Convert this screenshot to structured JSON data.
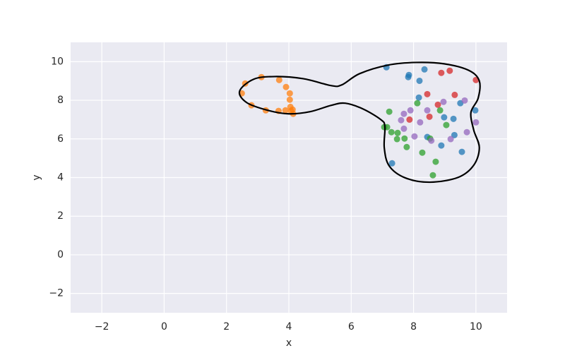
{
  "chart_data": {
    "type": "scatter",
    "x_label": "x",
    "y_label": "y",
    "xlim": [
      -3,
      11
    ],
    "ylim": [
      -3,
      11
    ],
    "xticks": [
      {
        "value": -2,
        "label": "−2"
      },
      0,
      2,
      4,
      6,
      8,
      10
    ],
    "yticks": [
      {
        "value": -2,
        "label": "−2"
      },
      0,
      2,
      4,
      6,
      8,
      10
    ],
    "grid": true,
    "background": "#eaeaf2",
    "grid_color": "#ffffff",
    "series": [
      {
        "color": "#ff7f0e",
        "x": [
          2.6,
          3.12,
          2.49,
          2.8,
          3.26,
          3.69,
          3.91,
          4.03,
          4.03,
          4.05,
          4.07,
          4.14,
          3.89,
          3.67,
          4.12
        ],
        "y": [
          8.87,
          9.2,
          8.36,
          7.74,
          7.48,
          9.05,
          8.69,
          8.36,
          8.03,
          7.66,
          7.45,
          7.3,
          7.48,
          7.45,
          7.52
        ]
      },
      {
        "color": "#1f77b4",
        "x": [
          7.13,
          7.85,
          7.83,
          8.35,
          8.19,
          8.17,
          9.5,
          9.98,
          9.28,
          8.98,
          8.44,
          9.31,
          8.89,
          9.55,
          7.31
        ],
        "y": [
          9.71,
          9.31,
          9.2,
          9.6,
          9.01,
          8.14,
          7.85,
          7.48,
          7.04,
          7.12,
          6.1,
          6.2,
          5.66,
          5.33,
          4.74
        ]
      },
      {
        "color": "#d62728",
        "x": [
          8.89,
          9.16,
          10.0,
          8.44,
          9.32,
          8.78,
          8.51,
          7.87
        ],
        "y": [
          9.42,
          9.53,
          9.05,
          8.32,
          8.28,
          7.77,
          7.15,
          7.0
        ]
      },
      {
        "color": "#2ca02c",
        "x": [
          7.22,
          8.12,
          8.85,
          7.06,
          7.15,
          7.29,
          7.49,
          7.47,
          7.71,
          7.78,
          8.53,
          9.05,
          8.28,
          8.71,
          8.62
        ],
        "y": [
          7.41,
          7.85,
          7.48,
          6.61,
          6.61,
          6.35,
          6.31,
          5.99,
          6.02,
          5.58,
          6.02,
          6.72,
          5.29,
          4.82,
          4.12
        ]
      },
      {
        "color": "#9467bd",
        "x": [
          7.9,
          7.69,
          7.6,
          7.69,
          8.03,
          8.44,
          8.96,
          9.64,
          10.0,
          9.71,
          9.19,
          8.57,
          8.21
        ],
        "y": [
          7.48,
          7.3,
          6.97,
          6.53,
          6.13,
          7.48,
          7.92,
          7.99,
          6.86,
          6.35,
          5.99,
          5.91,
          6.86
        ]
      }
    ],
    "curve": {
      "color": "#000000",
      "x": [
        2.42,
        2.87,
        3.55,
        4.46,
        5.36,
        5.7,
        6.27,
        7.17,
        8.08,
        8.98,
        9.77,
        10.11,
        10.07,
        9.84,
        9.93,
        10.11,
        9.93,
        9.43,
        8.53,
        7.74,
        7.22,
        7.06,
        7.08,
        6.95,
        6.38,
        5.81,
        5.36,
        4.68,
        4.0,
        3.33,
        2.65
      ],
      "y": [
        8.47,
        9.09,
        9.23,
        9.12,
        8.76,
        8.8,
        9.38,
        9.82,
        9.96,
        9.89,
        9.55,
        9.0,
        8.1,
        7.37,
        6.46,
        5.55,
        4.64,
        4.01,
        3.76,
        3.98,
        4.6,
        5.55,
        6.64,
        7.0,
        7.55,
        7.85,
        7.74,
        7.41,
        7.3,
        7.48,
        7.88
      ]
    }
  }
}
